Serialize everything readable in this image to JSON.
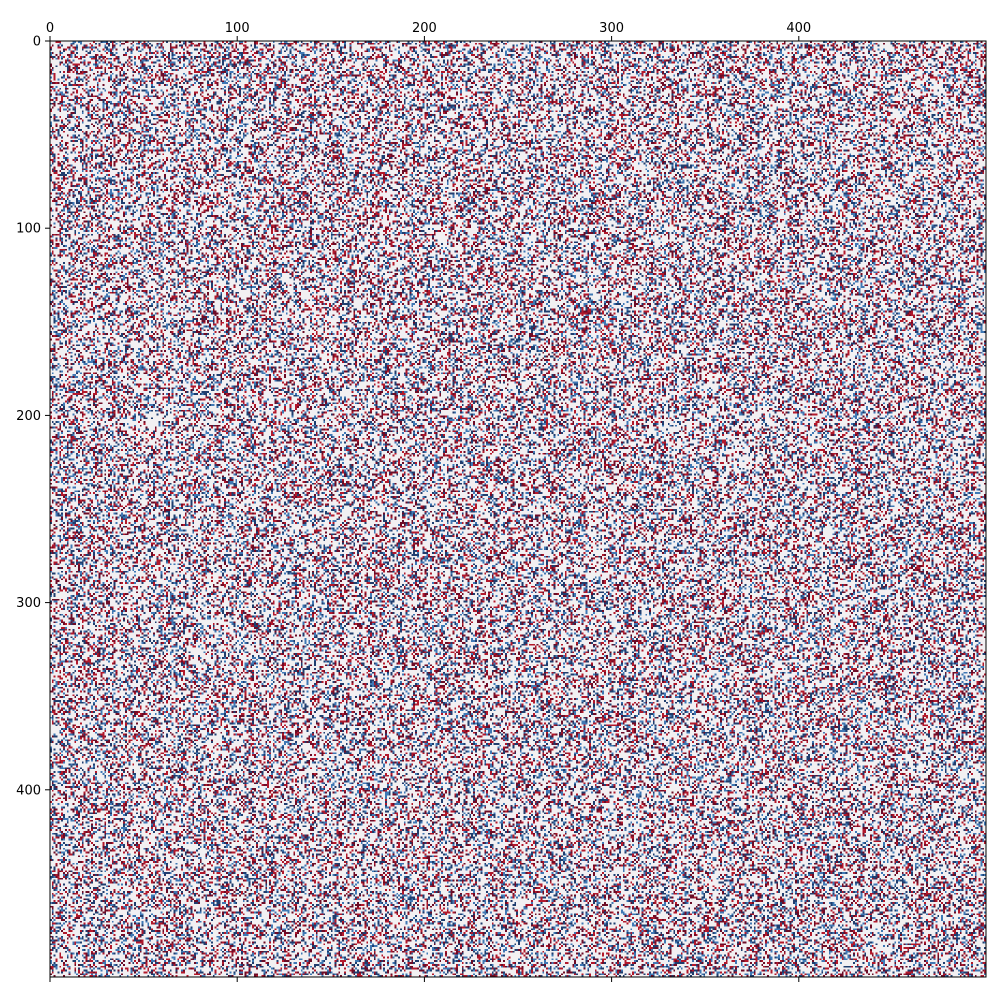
{
  "chart_data": {
    "type": "heatmap",
    "title": "",
    "xlabel": "",
    "ylabel": "",
    "matrix_rows": 500,
    "matrix_cols": 500,
    "xlim": [
      0,
      500
    ],
    "ylim": [
      500,
      0
    ],
    "x_axis_position": "top",
    "y_axis_position": "left",
    "x_ticks": [
      0,
      100,
      200,
      300,
      400
    ],
    "y_ticks": [
      0,
      100,
      200,
      300,
      400
    ],
    "x_tick_labels": [
      "0",
      "100",
      "200",
      "300",
      "400"
    ],
    "y_tick_labels": [
      "0",
      "100",
      "200",
      "300",
      "400"
    ],
    "grid": false,
    "legend": "none",
    "value_levels": [
      -1,
      0,
      1
    ],
    "value_fractions": [
      0.2,
      0.6,
      0.2
    ],
    "colors": {
      "negative_strong": "#1f3d6e",
      "negative_weak": "#3f78b4",
      "zero": "#f2f0f2",
      "positive_weak": "#b2182b",
      "positive_strong": "#6d0b26"
    }
  }
}
